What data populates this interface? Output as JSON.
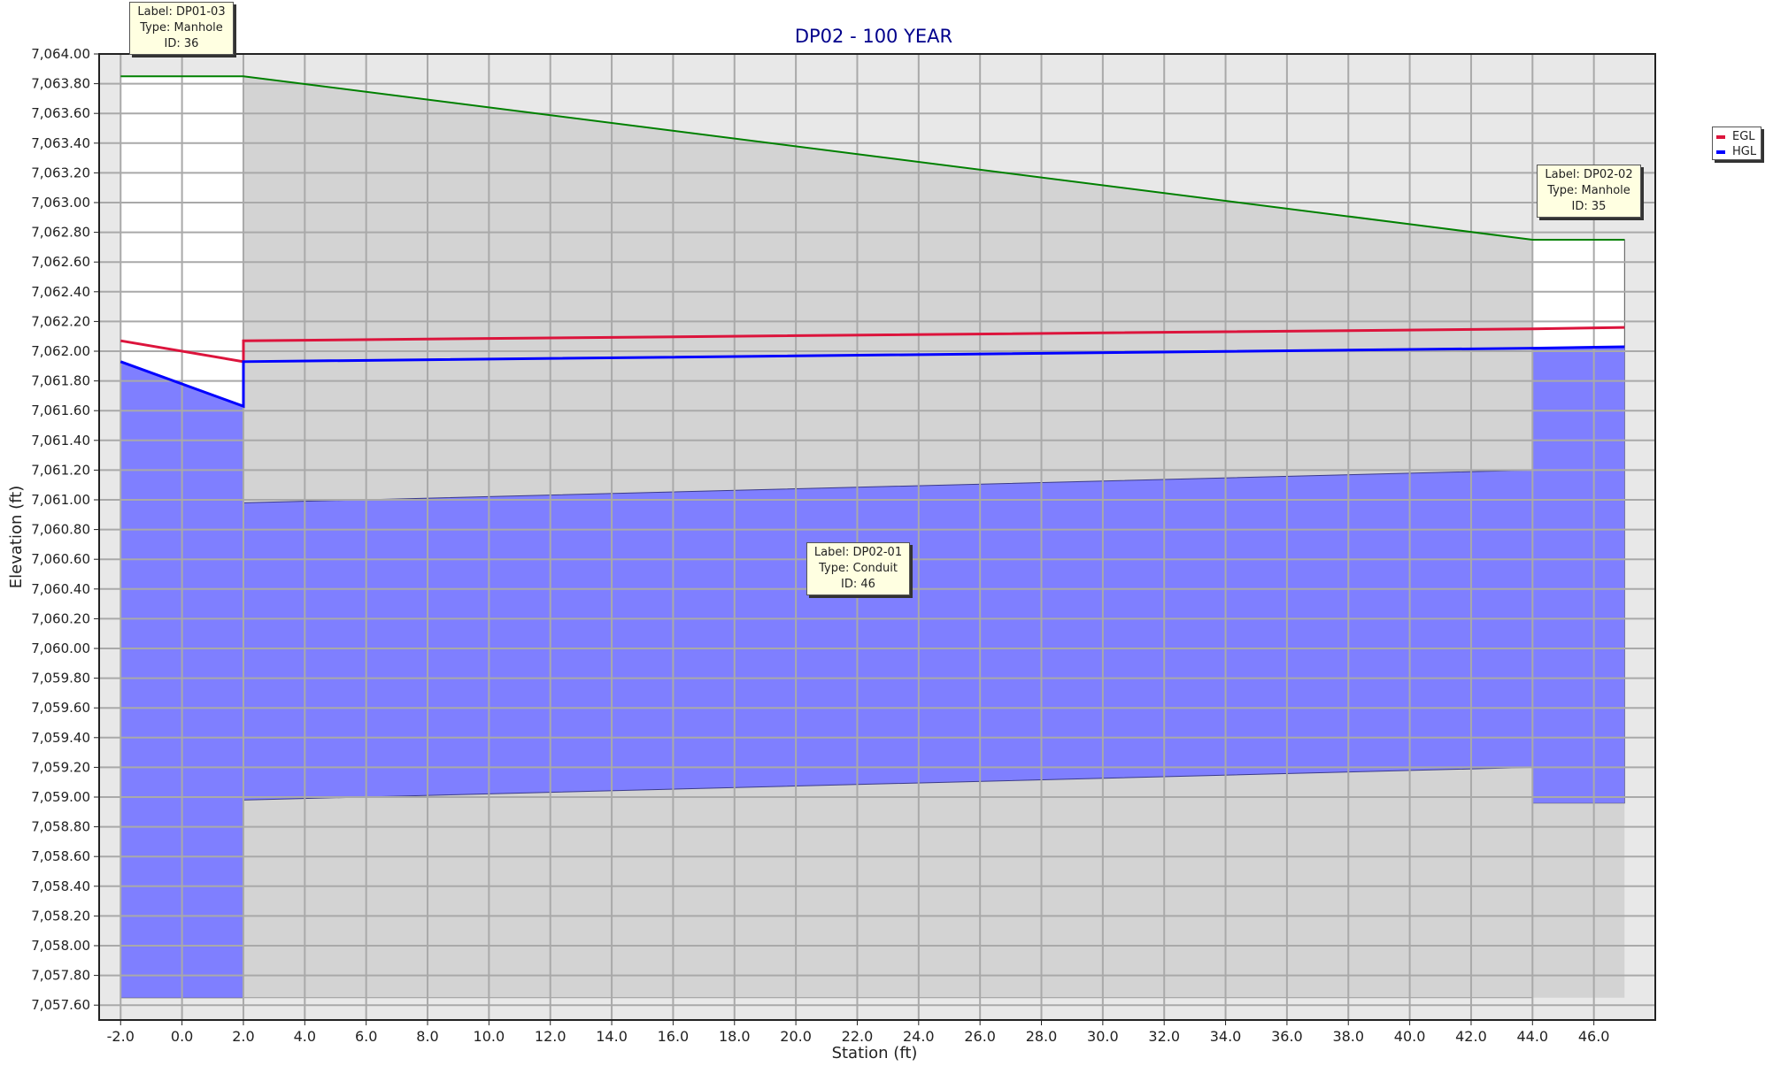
{
  "chart_data": {
    "type": "area",
    "title": "DP02 - 100 YEAR",
    "xlabel": "Station (ft)",
    "ylabel": "Elevation (ft)",
    "xlim": [
      -2.7,
      48.0
    ],
    "ylim": [
      7057.5,
      7064.0
    ],
    "xticks": [
      -2,
      0,
      2,
      4,
      6,
      8,
      10,
      12,
      14,
      16,
      18,
      20,
      22,
      24,
      26,
      28,
      30,
      32,
      34,
      36,
      38,
      40,
      42,
      44,
      46
    ],
    "xtick_labels": [
      "-2.0",
      "0.0",
      "2.0",
      "4.0",
      "6.0",
      "8.0",
      "10.0",
      "12.0",
      "14.0",
      "16.0",
      "18.0",
      "20.0",
      "22.0",
      "24.0",
      "26.0",
      "28.0",
      "30.0",
      "32.0",
      "34.0",
      "36.0",
      "38.0",
      "40.0",
      "42.0",
      "44.0",
      "46.0"
    ],
    "yticks": [
      7057.6,
      7057.8,
      7058.0,
      7058.2,
      7058.4,
      7058.6,
      7058.8,
      7059.0,
      7059.2,
      7059.4,
      7059.6,
      7059.8,
      7060.0,
      7060.2,
      7060.4,
      7060.6,
      7060.8,
      7061.0,
      7061.2,
      7061.4,
      7061.6,
      7061.8,
      7062.0,
      7062.2,
      7062.4,
      7062.6,
      7062.8,
      7063.0,
      7063.2,
      7063.4,
      7063.6,
      7063.8,
      7064.0
    ],
    "ytick_labels": [
      "7,057.60",
      "7,057.80",
      "7,058.00",
      "7,058.20",
      "7,058.40",
      "7,058.60",
      "7,058.80",
      "7,059.00",
      "7,059.20",
      "7,059.40",
      "7,059.60",
      "7,059.80",
      "7,060.00",
      "7,060.20",
      "7,060.40",
      "7,060.60",
      "7,060.80",
      "7,061.00",
      "7,061.20",
      "7,061.40",
      "7,061.60",
      "7,061.80",
      "7,062.00",
      "7,062.20",
      "7,062.40",
      "7,062.60",
      "7,062.80",
      "7,063.00",
      "7,063.20",
      "7,063.40",
      "7,063.60",
      "7,063.80",
      "7,064.00"
    ],
    "grid": true,
    "legend_position": "right",
    "structures": {
      "manhole_upstream": {
        "x": [
          -2.0,
          2.0
        ],
        "rim": 7063.85,
        "invert": 7057.65
      },
      "manhole_downstream": {
        "x": [
          44.0,
          47.0
        ],
        "rim": 7062.75,
        "invert": 7058.96
      },
      "conduit": {
        "x": [
          2.0,
          44.0
        ],
        "invert": [
          7058.98,
          7059.2
        ],
        "crown": [
          7060.98,
          7061.2
        ],
        "ground": [
          7063.85,
          7062.75
        ],
        "base": 7057.65
      }
    },
    "series": [
      {
        "name": "EGL",
        "color": "#dc143c",
        "x": [
          -2.0,
          2.0,
          2.0,
          44.0,
          47.0
        ],
        "y": [
          7062.07,
          7061.93,
          7062.07,
          7062.15,
          7062.16
        ]
      },
      {
        "name": "HGL",
        "color": "#0000ff",
        "x": [
          -2.0,
          2.0,
          2.0,
          44.0,
          47.0
        ],
        "y": [
          7061.93,
          7061.63,
          7061.93,
          7062.02,
          7062.03
        ]
      }
    ],
    "colors": {
      "water": "#7f7fff",
      "structure": "#d3d3d3",
      "background": "#e8e8e8",
      "ground": "#008000",
      "grid": "#a9a9a9",
      "title": "#00008b"
    },
    "annotations": [
      {
        "lines": [
          "Label: DP01-03",
          "Type: Manhole",
          "ID: 36"
        ]
      },
      {
        "lines": [
          "Label: DP02-02",
          "Type: Manhole",
          "ID: 35"
        ]
      },
      {
        "lines": [
          "Label: DP02-01",
          "Type: Conduit",
          "ID: 46"
        ]
      }
    ]
  }
}
